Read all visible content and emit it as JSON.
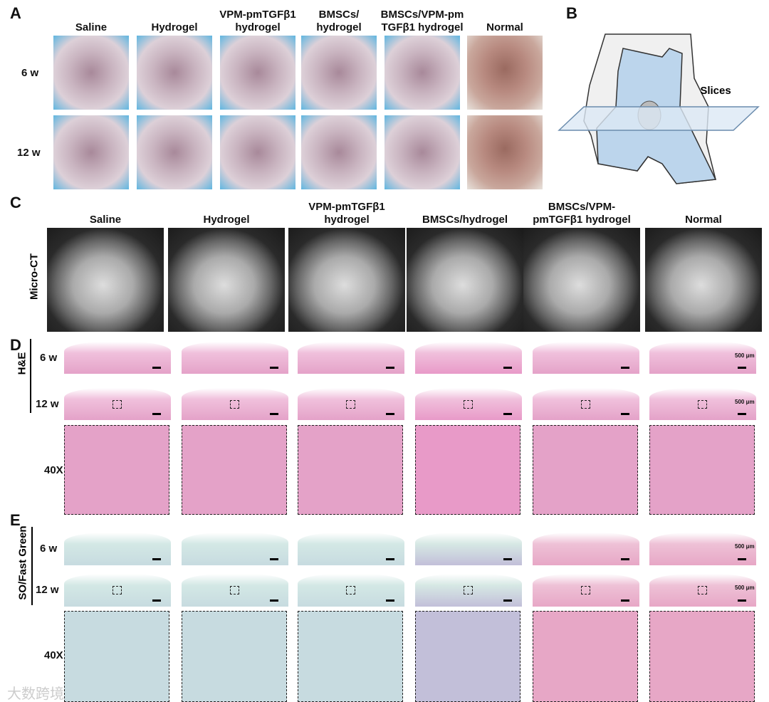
{
  "panel_a": {
    "label": "A",
    "columns": [
      [
        "Saline"
      ],
      [
        "Hydrogel"
      ],
      [
        "VPM-pmTGFβ1",
        "hydrogel"
      ],
      [
        "BMSCs/",
        "hydrogel"
      ],
      [
        "BMSCs/VPM-pm",
        "TGFβ1 hydrogel"
      ],
      [
        "Normal"
      ]
    ],
    "rows": [
      "6 w",
      "12 w"
    ]
  },
  "panel_b": {
    "label": "B",
    "annotation": "Slices"
  },
  "panel_c": {
    "label": "C",
    "modality": "Micro-CT",
    "columns": [
      [
        "Saline"
      ],
      [
        "Hydrogel"
      ],
      [
        "VPM-pmTGFβ1",
        "hydrogel"
      ],
      [
        "BMSCs/hydrogel"
      ],
      [
        "BMSCs/VPM-",
        "pmTGFβ1 hydrogel"
      ],
      [
        "Normal"
      ]
    ]
  },
  "panel_d": {
    "label": "D",
    "stain": "H&E",
    "rows": [
      "6 w",
      "12 w"
    ],
    "magnification": "40X",
    "scale_bar": "500 μm"
  },
  "panel_e": {
    "label": "E",
    "stain": "SO/Fast Green",
    "rows": [
      "6 w",
      "12 w"
    ],
    "magnification": "40X",
    "scale_bar": "500 μm"
  },
  "watermark": "大数跨境"
}
